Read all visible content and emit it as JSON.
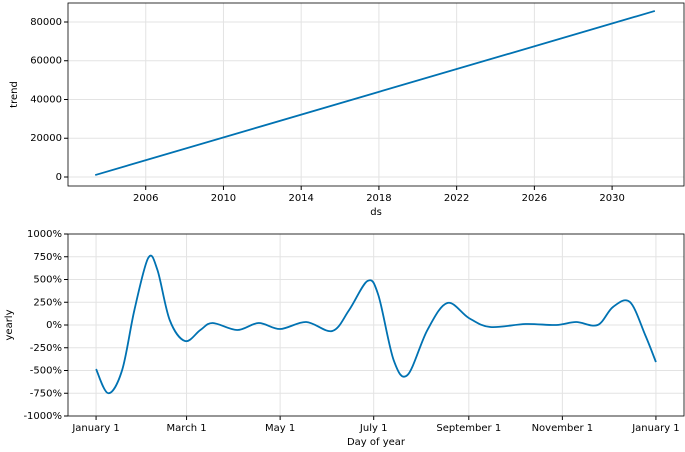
{
  "chart_data": [
    {
      "type": "line",
      "xlabel": "ds",
      "ylabel": "trend",
      "x": [
        2003.4,
        2032.2
      ],
      "series": [
        {
          "name": "trend",
          "color": "#0072B2",
          "values": [
            1000,
            85700
          ]
        }
      ],
      "xlim": [
        2002.0,
        2033.7
      ],
      "xticks": [
        2006,
        2010,
        2014,
        2018,
        2022,
        2026,
        2030
      ],
      "ylim": [
        -4650,
        89800
      ],
      "yticks": [
        0,
        20000,
        40000,
        60000,
        80000
      ],
      "grid": true
    },
    {
      "type": "line",
      "xlabel": "Day of year",
      "ylabel": "yearly",
      "x": [
        0,
        8,
        17,
        25,
        34,
        40,
        48,
        58,
        68,
        76,
        92,
        106,
        120,
        137,
        154,
        165,
        177,
        184,
        194,
        203,
        216,
        229,
        243,
        257,
        280,
        300,
        313,
        327,
        337,
        348,
        358,
        365
      ],
      "series": [
        {
          "name": "yearly",
          "color": "#0072B2",
          "values": [
            -484,
            -750,
            -495,
            165,
            737,
            605,
            55,
            -176,
            -55,
            22,
            -55,
            22,
            -44,
            33,
            -66,
            165,
            484,
            330,
            -385,
            -550,
            -55,
            242,
            77,
            -22,
            11,
            0,
            33,
            0,
            198,
            253,
            -110,
            -407
          ]
        }
      ],
      "xlim": [
        -18.3,
        383.3
      ],
      "xticks": [
        {
          "value": 0,
          "label": "January 1"
        },
        {
          "value": 59,
          "label": "March 1"
        },
        {
          "value": 120,
          "label": "May 1"
        },
        {
          "value": 181,
          "label": "July 1"
        },
        {
          "value": 243,
          "label": "September 1"
        },
        {
          "value": 304,
          "label": "November 1"
        },
        {
          "value": 365,
          "label": "January 1"
        }
      ],
      "ylim": [
        -1000,
        1000
      ],
      "yticks": [
        {
          "value": -1000,
          "label": "-1000%"
        },
        {
          "value": -750,
          "label": "-750%"
        },
        {
          "value": -500,
          "label": "-500%"
        },
        {
          "value": -250,
          "label": "-250%"
        },
        {
          "value": 0,
          "label": "0%"
        },
        {
          "value": 250,
          "label": "250%"
        },
        {
          "value": 500,
          "label": "500%"
        },
        {
          "value": 750,
          "label": "750%"
        },
        {
          "value": 1000,
          "label": "1000%"
        }
      ],
      "grid": true
    }
  ]
}
